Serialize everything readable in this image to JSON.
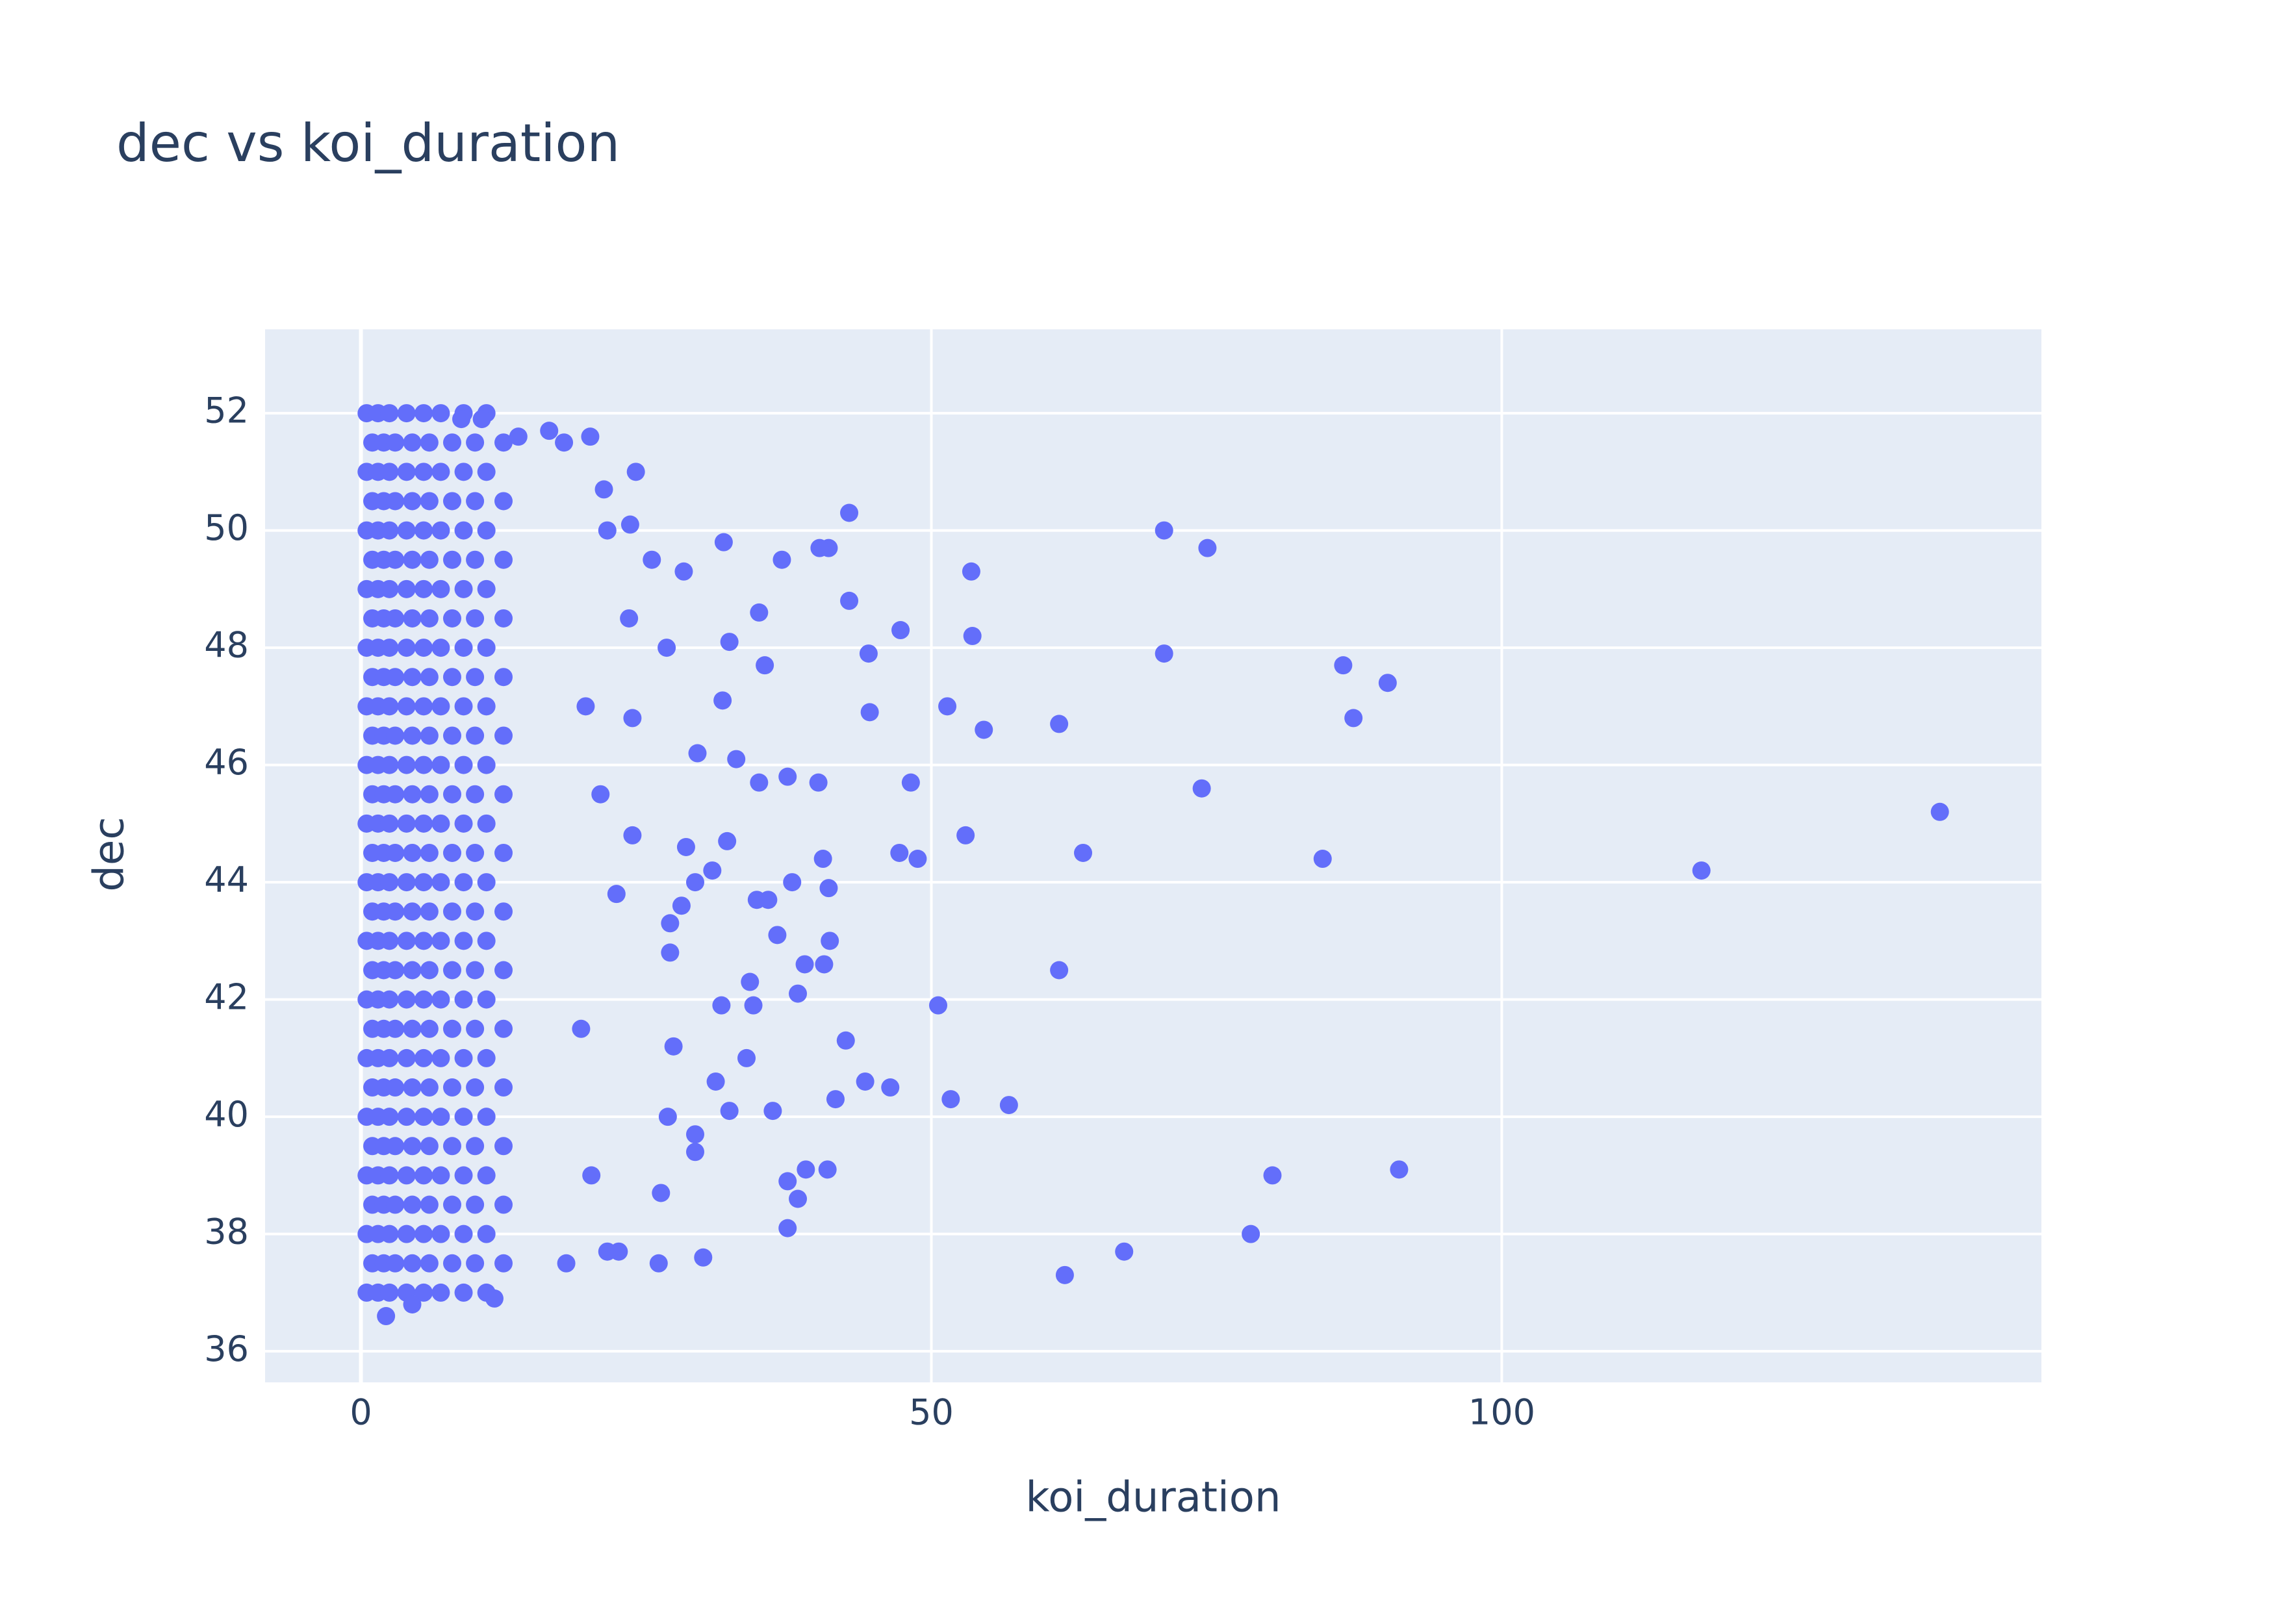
{
  "chart_data": {
    "type": "scatter",
    "title": "dec vs koi_duration",
    "x_label": "koi_duration",
    "y_label": "dec",
    "color": "#636efa",
    "grid": true,
    "xlim": [
      -8.4,
      147.3
    ],
    "ylim": [
      35.47,
      53.43
    ],
    "xticks": [
      0,
      50,
      100
    ],
    "yticks": [
      36,
      38,
      40,
      42,
      44,
      46,
      48,
      50,
      52
    ],
    "x": [
      0.5,
      1.5,
      2.5,
      4,
      5.5,
      7,
      9,
      11,
      1,
      2,
      3,
      4.5,
      6,
      8,
      10,
      12.5,
      0.5,
      1.5,
      2.5,
      4,
      5.5,
      7,
      9,
      11,
      1,
      2,
      3,
      4.5,
      6,
      8,
      10,
      12.5,
      0.5,
      1.5,
      2.5,
      4,
      5.5,
      7,
      9,
      11,
      1,
      2,
      3,
      4.5,
      6,
      8,
      10,
      12.5,
      0.5,
      1.5,
      2.5,
      4,
      5.5,
      7,
      9,
      11,
      1,
      2,
      3,
      4.5,
      6,
      8,
      10,
      12.5,
      0.5,
      1.5,
      2.5,
      4,
      5.5,
      7,
      9,
      11,
      1,
      2,
      3,
      4.5,
      6,
      8,
      10,
      12.5,
      0.5,
      1.5,
      2.5,
      4,
      5.5,
      7,
      9,
      11,
      1,
      2,
      3,
      4.5,
      6,
      8,
      10,
      12.5,
      0.5,
      1.5,
      2.5,
      4,
      5.5,
      7,
      9,
      11,
      1,
      2,
      3,
      4.5,
      6,
      8,
      10,
      12.5,
      0.5,
      1.5,
      2.5,
      4,
      5.5,
      7,
      9,
      11,
      1,
      2,
      3,
      4.5,
      6,
      8,
      10,
      12.5,
      0.5,
      1.5,
      2.5,
      4,
      5.5,
      7,
      9,
      11,
      1,
      2,
      3,
      4.5,
      6,
      8,
      10,
      12.5,
      0.5,
      1.5,
      2.5,
      4,
      5.5,
      7,
      9,
      11,
      1,
      2,
      3,
      4.5,
      6,
      8,
      10,
      12.5,
      0.5,
      1.5,
      2.5,
      4,
      5.5,
      7,
      9,
      11,
      1,
      2,
      3,
      4.5,
      6,
      8,
      10,
      12.5,
      0.5,
      1.5,
      2.5,
      4,
      5.5,
      7,
      9,
      11,
      1,
      2,
      3,
      4.5,
      6,
      8,
      10,
      12.5,
      0.5,
      1.5,
      2.5,
      4,
      5.5,
      7,
      9,
      11,
      1,
      2,
      3,
      4.5,
      6,
      8,
      10,
      12.5,
      0.5,
      1.5,
      2.5,
      4,
      5.5,
      7,
      9,
      11,
      1,
      2,
      3,
      4.5,
      6,
      8,
      10,
      12.5,
      0.5,
      1.5,
      2.5,
      4,
      5.5,
      7,
      9,
      11,
      1,
      2,
      3,
      4.5,
      6,
      8,
      10,
      12.5,
      0.5,
      1.5,
      2.5,
      4,
      5.5,
      7,
      9,
      11,
      138.4,
      117.5,
      91.0,
      90.0,
      86.1,
      87.0,
      84.3,
      79.9,
      78.0,
      73.7,
      74.2,
      70.4,
      70.4,
      66.9,
      61.7,
      63.3,
      61.2,
      61.2,
      56.8,
      54.6,
      53.5,
      53.6,
      53.0,
      51.7,
      51.4,
      50.6,
      47.3,
      48.2,
      47.2,
      48.8,
      46.4,
      44.5,
      44.6,
      42.8,
      42.8,
      42.5,
      44.2,
      41.0,
      40.2,
      40.1,
      40.5,
      41.0,
      41.1,
      40.6,
      38.9,
      38.3,
      41.6,
      40.9,
      39.0,
      37.4,
      38.3,
      37.4,
      36.9,
      37.4,
      37.8,
      36.5,
      36.1,
      35.4,
      34.9,
      34.9,
      34.7,
      35.7,
      34.4,
      34.1,
      33.8,
      32.3,
      31.7,
      32.3,
      31.8,
      32.9,
      31.6,
      31.1,
      32.1,
      30.8,
      29.3,
      29.3,
      29.3,
      30.0,
      28.5,
      29.5,
      28.1,
      27.1,
      26.1,
      26.3,
      26.9,
      27.4,
      26.8,
      27.1,
      28.3,
      25.5,
      24.1,
      23.6,
      23.5,
      23.8,
      23.8,
      22.4,
      22.6,
      21.6,
      21.3,
      20.1,
      21.6,
      19.7,
      21.0,
      20.2,
      19.3,
      18.0,
      17.8,
      16.5,
      13.8,
      10.6,
      8.8,
      11.7,
      4.5,
      2.2
    ],
    "values": [
      37,
      37,
      37,
      37,
      37,
      37,
      37,
      37,
      37.5,
      37.5,
      37.5,
      37.5,
      37.5,
      37.5,
      37.5,
      37.5,
      38,
      38,
      38,
      38,
      38,
      38,
      38,
      38,
      38.5,
      38.5,
      38.5,
      38.5,
      38.5,
      38.5,
      38.5,
      38.5,
      39,
      39,
      39,
      39,
      39,
      39,
      39,
      39,
      39.5,
      39.5,
      39.5,
      39.5,
      39.5,
      39.5,
      39.5,
      39.5,
      40,
      40,
      40,
      40,
      40,
      40,
      40,
      40,
      40.5,
      40.5,
      40.5,
      40.5,
      40.5,
      40.5,
      40.5,
      40.5,
      41,
      41,
      41,
      41,
      41,
      41,
      41,
      41,
      41.5,
      41.5,
      41.5,
      41.5,
      41.5,
      41.5,
      41.5,
      41.5,
      42,
      42,
      42,
      42,
      42,
      42,
      42,
      42,
      42.5,
      42.5,
      42.5,
      42.5,
      42.5,
      42.5,
      42.5,
      42.5,
      43,
      43,
      43,
      43,
      43,
      43,
      43,
      43,
      43.5,
      43.5,
      43.5,
      43.5,
      43.5,
      43.5,
      43.5,
      43.5,
      44,
      44,
      44,
      44,
      44,
      44,
      44,
      44,
      44.5,
      44.5,
      44.5,
      44.5,
      44.5,
      44.5,
      44.5,
      44.5,
      45,
      45,
      45,
      45,
      45,
      45,
      45,
      45,
      45.5,
      45.5,
      45.5,
      45.5,
      45.5,
      45.5,
      45.5,
      45.5,
      46,
      46,
      46,
      46,
      46,
      46,
      46,
      46,
      46.5,
      46.5,
      46.5,
      46.5,
      46.5,
      46.5,
      46.5,
      46.5,
      47,
      47,
      47,
      47,
      47,
      47,
      47,
      47,
      47.5,
      47.5,
      47.5,
      47.5,
      47.5,
      47.5,
      47.5,
      47.5,
      48,
      48,
      48,
      48,
      48,
      48,
      48,
      48,
      48.5,
      48.5,
      48.5,
      48.5,
      48.5,
      48.5,
      48.5,
      48.5,
      49,
      49,
      49,
      49,
      49,
      49,
      49,
      49,
      49.5,
      49.5,
      49.5,
      49.5,
      49.5,
      49.5,
      49.5,
      49.5,
      50,
      50,
      50,
      50,
      50,
      50,
      50,
      50,
      50.5,
      50.5,
      50.5,
      50.5,
      50.5,
      50.5,
      50.5,
      50.5,
      51,
      51,
      51,
      51,
      51,
      51,
      51,
      51,
      51.5,
      51.5,
      51.5,
      51.5,
      51.5,
      51.5,
      51.5,
      51.5,
      52,
      52,
      52,
      52,
      52,
      52,
      52,
      52,
      45.2,
      44.2,
      39.1,
      47.4,
      47.7,
      46.8,
      44.4,
      39.0,
      38.0,
      45.6,
      49.7,
      50.0,
      47.9,
      37.7,
      37.3,
      44.5,
      46.7,
      42.5,
      40.2,
      46.6,
      49.3,
      48.2,
      44.8,
      40.3,
      47.0,
      41.9,
      48.3,
      45.7,
      44.5,
      44.4,
      40.5,
      47.9,
      46.9,
      48.8,
      50.3,
      41.3,
      40.6,
      49.7,
      49.7,
      45.7,
      44.4,
      43.9,
      43.0,
      42.6,
      42.6,
      42.1,
      40.3,
      39.1,
      39.1,
      38.9,
      38.6,
      38.1,
      49.5,
      45.8,
      44.0,
      43.1,
      40.1,
      47.7,
      48.6,
      45.7,
      43.7,
      43.7,
      41.9,
      42.3,
      41.0,
      40.1,
      47.1,
      48.1,
      49.8,
      46.1,
      41.9,
      40.6,
      44.7,
      44.2,
      44.0,
      39.7,
      39.4,
      37.6,
      44.6,
      46.2,
      43.6,
      43.3,
      37.5,
      38.7,
      40.0,
      41.2,
      48.0,
      42.8,
      49.3,
      49.5,
      51.0,
      50.1,
      48.5,
      46.8,
      44.8,
      43.8,
      37.7,
      50.0,
      50.7,
      51.6,
      37.7,
      47.0,
      45.5,
      39.0,
      41.5,
      37.5,
      51.5,
      51.7,
      51.6,
      51.9,
      51.9,
      36.9,
      36.8,
      36.6
    ]
  }
}
